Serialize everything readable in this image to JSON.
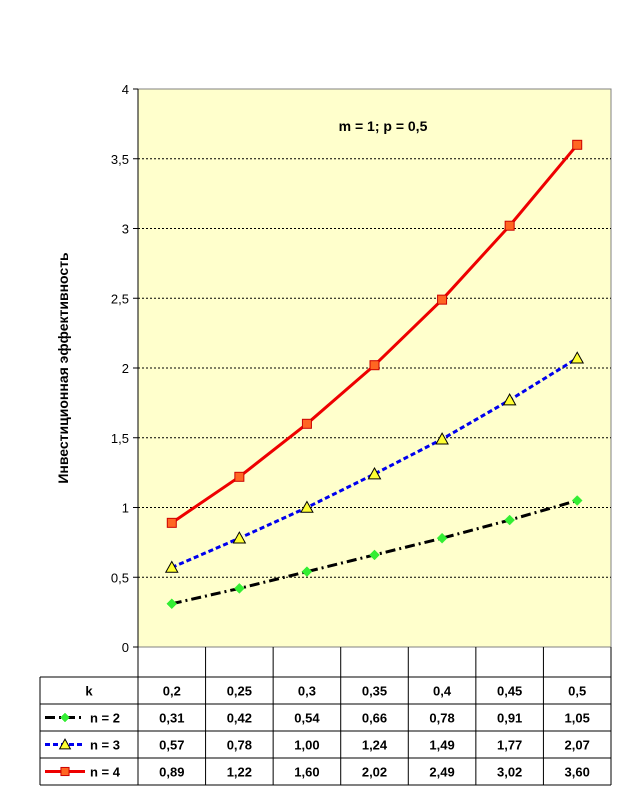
{
  "chart_data": {
    "type": "line",
    "title": "",
    "annotation": "m = 1; p = 0,5",
    "ylabel": "Инвестиционная эффективность",
    "xlabel": "k",
    "categories": [
      "0,2",
      "0,25",
      "0,3",
      "0,35",
      "0,4",
      "0,45",
      "0,5"
    ],
    "ylim": [
      0,
      4
    ],
    "yticks": [
      0,
      0.5,
      1,
      1.5,
      2,
      2.5,
      3,
      3.5,
      4
    ],
    "ytick_labels": [
      "0",
      "0,5",
      "1",
      "1,5",
      "2",
      "2,5",
      "3",
      "3,5",
      "4"
    ],
    "grid": true,
    "legend_placement": "data-table-below",
    "plot_background": "#ffffcc",
    "series": [
      {
        "name": "n = 2",
        "values": [
          0.31,
          0.42,
          0.54,
          0.66,
          0.78,
          0.91,
          1.05
        ],
        "value_labels": [
          "0,31",
          "0,42",
          "0,54",
          "0,66",
          "0,78",
          "0,91",
          "1,05"
        ],
        "line_color": "#000000",
        "marker_color": "#33ee33",
        "marker": "diamond",
        "dash": "dash-dot"
      },
      {
        "name": "n = 3",
        "values": [
          0.57,
          0.78,
          1.0,
          1.24,
          1.49,
          1.77,
          2.07
        ],
        "value_labels": [
          "0,57",
          "0,78",
          "1,00",
          "1,24",
          "1,49",
          "1,77",
          "2,07"
        ],
        "line_color": "#0000ee",
        "marker_color": "#ffff33",
        "marker": "triangle",
        "dash": "dotted"
      },
      {
        "name": "n = 4",
        "values": [
          0.89,
          1.22,
          1.6,
          2.02,
          2.49,
          3.02,
          3.6
        ],
        "value_labels": [
          "0,89",
          "1,22",
          "1,60",
          "2,02",
          "2,49",
          "3,02",
          "3,60"
        ],
        "line_color": "#ee0000",
        "marker_color": "#ff6622",
        "marker": "square",
        "dash": "solid"
      }
    ]
  }
}
